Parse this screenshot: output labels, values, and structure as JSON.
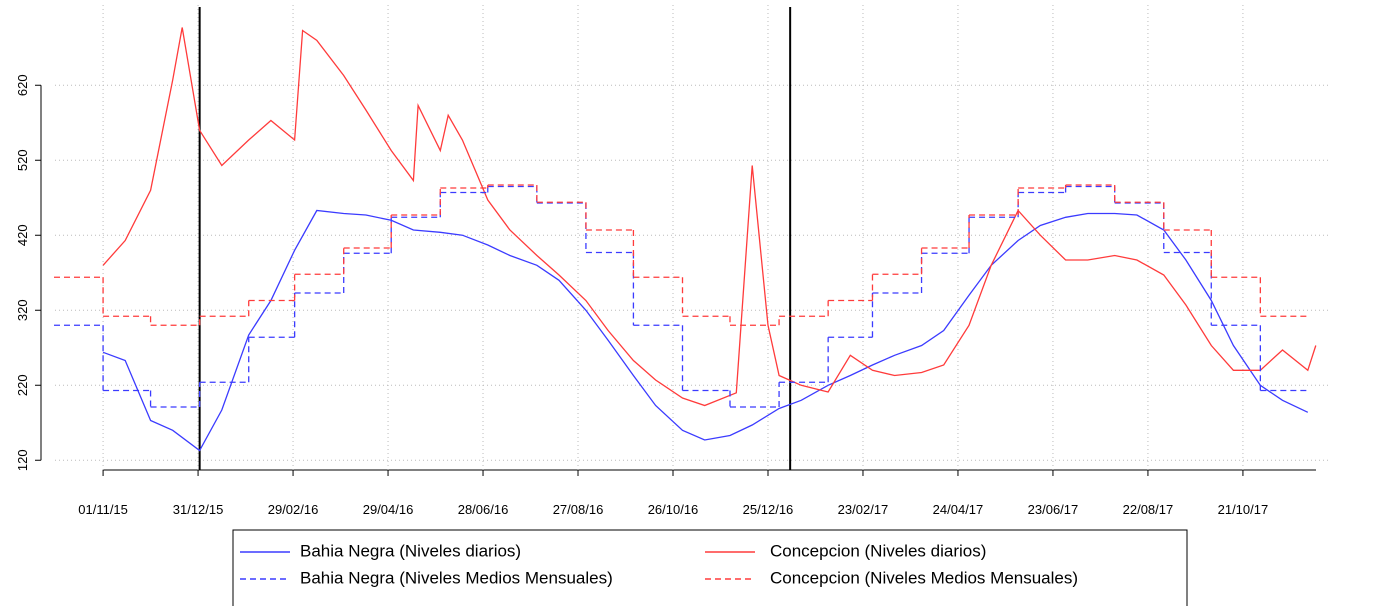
{
  "chart_data": {
    "type": "line",
    "xlim": [
      "2015-10-01",
      "2017-12-15"
    ],
    "ylim": [
      107,
      727
    ],
    "yticks": [
      120,
      220,
      320,
      420,
      520,
      620
    ],
    "xticks": [
      {
        "value": "2015-11-01",
        "label": "01/11/15"
      },
      {
        "value": "2015-12-31",
        "label": "31/12/15"
      },
      {
        "value": "2016-02-29",
        "label": "29/02/16"
      },
      {
        "value": "2016-04-29",
        "label": "29/04/16"
      },
      {
        "value": "2016-06-28",
        "label": "28/06/16"
      },
      {
        "value": "2016-08-27",
        "label": "27/08/16"
      },
      {
        "value": "2016-10-26",
        "label": "26/10/16"
      },
      {
        "value": "2016-12-25",
        "label": "25/12/16"
      },
      {
        "value": "2017-02-23",
        "label": "23/02/17"
      },
      {
        "value": "2017-04-24",
        "label": "24/04/17"
      },
      {
        "value": "2017-06-23",
        "label": "23/06/17"
      },
      {
        "value": "2017-08-22",
        "label": "22/08/17"
      },
      {
        "value": "2017-10-21",
        "label": "21/10/17"
      }
    ],
    "grid": true,
    "vlines": [
      "2016-01-01",
      "2017-01-08"
    ],
    "series": [
      {
        "name": "Bahia Negra (Niveles diarios)",
        "color": "#3b3bff",
        "dashed": false,
        "x": [
          "2015-11-01",
          "2015-11-15",
          "2015-12-01",
          "2015-12-15",
          "2016-01-01",
          "2016-01-15",
          "2016-02-01",
          "2016-02-15",
          "2016-03-01",
          "2016-03-15",
          "2016-04-01",
          "2016-04-15",
          "2016-05-01",
          "2016-05-15",
          "2016-06-01",
          "2016-06-15",
          "2016-07-01",
          "2016-07-15",
          "2016-08-01",
          "2016-08-15",
          "2016-09-01",
          "2016-09-15",
          "2016-10-01",
          "2016-10-15",
          "2016-11-01",
          "2016-11-15",
          "2016-12-01",
          "2016-12-15",
          "2017-01-01",
          "2017-01-15",
          "2017-02-01",
          "2017-02-15",
          "2017-03-01",
          "2017-03-15",
          "2017-04-01",
          "2017-04-15",
          "2017-05-01",
          "2017-05-15",
          "2017-06-01",
          "2017-06-15",
          "2017-07-01",
          "2017-07-15",
          "2017-08-01",
          "2017-08-15",
          "2017-09-01",
          "2017-09-15",
          "2017-10-01",
          "2017-10-15",
          "2017-11-01",
          "2017-11-15",
          "2017-12-01"
        ],
        "values": [
          264,
          253,
          173,
          160,
          133,
          187,
          287,
          333,
          400,
          453,
          449,
          447,
          440,
          427,
          424,
          420,
          407,
          393,
          380,
          360,
          320,
          280,
          233,
          193,
          160,
          147,
          153,
          167,
          189,
          200,
          220,
          233,
          247,
          260,
          273,
          293,
          340,
          380,
          413,
          433,
          444,
          449,
          449,
          447,
          427,
          387,
          333,
          273,
          220,
          200,
          184
        ]
      },
      {
        "name": "Concepcion (Niveles diarios)",
        "color": "#ff3b3b",
        "dashed": false,
        "x": [
          "2015-11-01",
          "2015-11-15",
          "2015-12-01",
          "2015-12-15",
          "2015-12-21",
          "2016-01-01",
          "2016-01-15",
          "2016-02-01",
          "2016-02-15",
          "2016-03-01",
          "2016-03-06",
          "2016-03-15",
          "2016-04-01",
          "2016-04-15",
          "2016-05-01",
          "2016-05-15",
          "2016-05-18",
          "2016-06-01",
          "2016-06-06",
          "2016-06-15",
          "2016-07-01",
          "2016-07-15",
          "2016-08-01",
          "2016-08-15",
          "2016-09-01",
          "2016-09-15",
          "2016-10-01",
          "2016-10-15",
          "2016-11-01",
          "2016-11-15",
          "2016-12-05",
          "2016-12-15",
          "2016-12-25",
          "2017-01-01",
          "2017-01-15",
          "2017-02-01",
          "2017-02-15",
          "2017-03-01",
          "2017-03-15",
          "2017-04-01",
          "2017-04-15",
          "2017-05-01",
          "2017-05-15",
          "2017-06-01",
          "2017-06-15",
          "2017-07-01",
          "2017-07-15",
          "2017-08-01",
          "2017-08-15",
          "2017-09-01",
          "2017-09-15",
          "2017-10-01",
          "2017-10-15",
          "2017-11-01",
          "2017-11-15",
          "2017-12-01",
          "2017-12-06"
        ],
        "values": [
          380,
          413,
          480,
          627,
          697,
          560,
          513,
          547,
          573,
          547,
          693,
          680,
          633,
          587,
          533,
          493,
          593,
          533,
          580,
          547,
          467,
          427,
          393,
          367,
          333,
          293,
          253,
          227,
          203,
          193,
          210,
          513,
          300,
          233,
          220,
          211,
          260,
          240,
          233,
          237,
          247,
          300,
          380,
          453,
          420,
          387,
          387,
          393,
          387,
          367,
          327,
          273,
          240,
          240,
          267,
          240,
          273
        ]
      },
      {
        "name": "Bahia Negra (Niveles Medios Mensuales)",
        "color": "#3b3bff",
        "dashed": true,
        "x": [
          "2015-10-01",
          "2015-11-01",
          "2015-12-01",
          "2016-01-01",
          "2016-02-01",
          "2016-03-01",
          "2016-04-01",
          "2016-05-01",
          "2016-06-01",
          "2016-07-01",
          "2016-08-01",
          "2016-09-01",
          "2016-10-01",
          "2016-11-01",
          "2016-12-01",
          "2017-01-01",
          "2017-02-01",
          "2017-03-01",
          "2017-04-01",
          "2017-05-01",
          "2017-06-01",
          "2017-07-01",
          "2017-08-01",
          "2017-09-01",
          "2017-10-01",
          "2017-11-01"
        ],
        "values": [
          300,
          213,
          191,
          224,
          284,
          343,
          396,
          444,
          477,
          485,
          463,
          397,
          300,
          213,
          191,
          224,
          284,
          343,
          396,
          444,
          477,
          485,
          463,
          397,
          300,
          213
        ]
      },
      {
        "name": "Concepcion (Niveles Medios Mensuales)",
        "color": "#ff3b3b",
        "dashed": true,
        "x": [
          "2015-10-01",
          "2015-11-01",
          "2015-12-01",
          "2016-01-01",
          "2016-02-01",
          "2016-03-01",
          "2016-04-01",
          "2016-05-01",
          "2016-06-01",
          "2016-07-01",
          "2016-08-01",
          "2016-09-01",
          "2016-10-01",
          "2016-11-01",
          "2016-12-01",
          "2017-01-01",
          "2017-02-01",
          "2017-03-01",
          "2017-04-01",
          "2017-05-01",
          "2017-06-01",
          "2017-07-01",
          "2017-08-01",
          "2017-09-01",
          "2017-10-01",
          "2017-11-01"
        ],
        "values": [
          364,
          312,
          300,
          312,
          333,
          368,
          403,
          447,
          483,
          487,
          464,
          427,
          364,
          312,
          300,
          312,
          333,
          368,
          403,
          447,
          483,
          487,
          464,
          427,
          364,
          312
        ]
      }
    ]
  }
}
